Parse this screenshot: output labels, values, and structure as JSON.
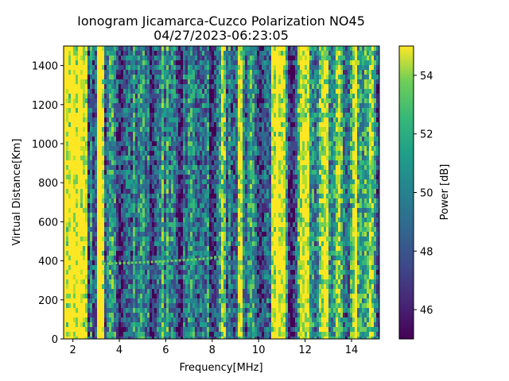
{
  "chart_data": {
    "type": "heatmap",
    "title": "Ionogram Jicamarca-Cuzco Polarization NO45",
    "subtitle": "04/27/2023-06:23:05",
    "xlabel": "Frequency[MHz]",
    "ylabel": "Virtual Distance[Km]",
    "xlim": [
      1.6,
      15.2
    ],
    "ylim": [
      0,
      1500
    ],
    "x_ticks": [
      2,
      4,
      6,
      8,
      10,
      12,
      14
    ],
    "y_ticks": [
      0,
      200,
      400,
      600,
      800,
      1000,
      1200,
      1400
    ],
    "colorbar": {
      "label": "Power [dB]",
      "range": [
        45,
        55
      ],
      "ticks": [
        46,
        48,
        50,
        52,
        54
      ],
      "colormap": "viridis"
    },
    "high_power_bands_mhz": [
      [
        1.6,
        2.3
      ],
      [
        2.3,
        2.6
      ],
      [
        3.0,
        3.3
      ],
      [
        9.1,
        9.35
      ],
      [
        10.5,
        11.2
      ],
      [
        11.8,
        12.2
      ],
      [
        12.8,
        13.0
      ]
    ],
    "trace": {
      "x": [
        3.3,
        4.0,
        5.0,
        6.0,
        7.0,
        7.8,
        8.6
      ],
      "y": [
        385,
        388,
        392,
        398,
        405,
        412,
        425
      ]
    },
    "colors": {
      "viridis_low": "#440154",
      "viridis_mid": "#21918c",
      "viridis_high": "#fde725"
    }
  }
}
